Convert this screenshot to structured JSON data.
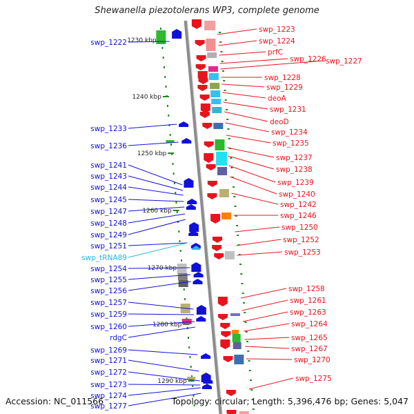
{
  "header": {
    "title": "Shewanella piezotolerans WP3, complete genome"
  },
  "footer": {
    "accession": "Accession: NC_011566",
    "summary": "Topology: circular; Length: 5,396,476 bp; Genes: 5,047"
  },
  "colors": {
    "forward": "#e8141c",
    "reverse": "#1010d8",
    "trna": "#23b9e0",
    "backbone": "#8c8c8c",
    "tick": "#1a8a1a"
  },
  "scale_labels": [
    "1230 kbp",
    "1240 kbp",
    "1250 kbp",
    "1260 kbp",
    "1270 kbp",
    "1280 kbp",
    "1290 kbp"
  ],
  "left_genes": [
    {
      "label": "swp_1222",
      "type": "cds"
    },
    {
      "label": "swp_1233",
      "type": "cds"
    },
    {
      "label": "swp_1236",
      "type": "cds"
    },
    {
      "label": "swp_1241",
      "type": "cds"
    },
    {
      "label": "swp_1243",
      "type": "cds"
    },
    {
      "label": "swp_1244",
      "type": "cds"
    },
    {
      "label": "swp_1245",
      "type": "cds"
    },
    {
      "label": "swp_1247",
      "type": "cds"
    },
    {
      "label": "swp_1248",
      "type": "cds"
    },
    {
      "label": "swp_1249",
      "type": "cds"
    },
    {
      "label": "swp_1251",
      "type": "cds"
    },
    {
      "label": "swp_tRNA89",
      "type": "trna"
    },
    {
      "label": "swp_1254",
      "type": "cds"
    },
    {
      "label": "swp_1255",
      "type": "cds"
    },
    {
      "label": "swp_1256",
      "type": "cds"
    },
    {
      "label": "swp_1257",
      "type": "cds"
    },
    {
      "label": "swp_1259",
      "type": "cds"
    },
    {
      "label": "swp_1260",
      "type": "cds"
    },
    {
      "label": "rdgC",
      "type": "cds"
    },
    {
      "label": "swp_1269",
      "type": "cds"
    },
    {
      "label": "swp_1271",
      "type": "cds"
    },
    {
      "label": "swp_1272",
      "type": "cds"
    },
    {
      "label": "swp_1273",
      "type": "cds"
    },
    {
      "label": "swp_1274",
      "type": "cds"
    },
    {
      "label": "swp_1277",
      "type": "cds"
    }
  ],
  "right_genes": [
    {
      "label": "swp_1223"
    },
    {
      "label": "swp_1224"
    },
    {
      "label": "prfC"
    },
    {
      "label": "swp_1226"
    },
    {
      "label": "swp_1227"
    },
    {
      "label": "swp_1228"
    },
    {
      "label": "swp_1229"
    },
    {
      "label": "deoA"
    },
    {
      "label": "swp_1231"
    },
    {
      "label": "deoD"
    },
    {
      "label": "swp_1234"
    },
    {
      "label": "swp_1235"
    },
    {
      "label": "swp_1237"
    },
    {
      "label": "swp_1238"
    },
    {
      "label": "swp_1239"
    },
    {
      "label": "swp_1240"
    },
    {
      "label": "swp_1242"
    },
    {
      "label": "swp_1246"
    },
    {
      "label": "swp_1250"
    },
    {
      "label": "swp_1252"
    },
    {
      "label": "swp_1253"
    },
    {
      "label": "swp_1258"
    },
    {
      "label": "swp_1261"
    },
    {
      "label": "swp_1263"
    },
    {
      "label": "swp_1264"
    },
    {
      "label": "swp_1265"
    },
    {
      "label": "swp_1267"
    },
    {
      "label": "swp_1270"
    },
    {
      "label": "swp_1275"
    }
  ]
}
